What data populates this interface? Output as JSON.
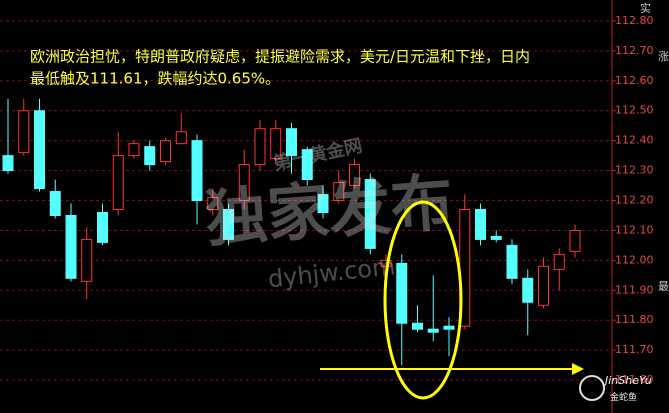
{
  "chart_data": {
    "type": "candlestick",
    "annotation": [
      "欧洲政治担忧，特朗普政府疑虑，提振避险需求，美元/日元温和下挫，日内",
      "最低触及111.61，跌幅约达0.65%。"
    ],
    "watermark": [
      "独家发布",
      "dyhjw.com",
      "第一黄金网"
    ],
    "logo": [
      "JinSheYu",
      "金蛇鱼"
    ],
    "side_labels": [
      "实",
      "涨",
      "最"
    ],
    "open": [
      112.35,
      112.36,
      112.5,
      112.23,
      112.15,
      111.93,
      112.16,
      112.17,
      112.35,
      112.38,
      112.33,
      112.39,
      112.4,
      112.17,
      112.17,
      112.2,
      112.32,
      112.34,
      112.44,
      112.37,
      112.22,
      112.2,
      112.25,
      112.27,
      111.98,
      111.99,
      111.79,
      111.77,
      111.78,
      111.78,
      112.17,
      112.08,
      112.05,
      111.94,
      111.85,
      111.97,
      112.03
    ],
    "high": [
      112.54,
      112.54,
      112.54,
      112.27,
      112.19,
      112.11,
      112.19,
      112.43,
      112.4,
      112.4,
      112.41,
      112.49,
      112.42,
      112.24,
      112.19,
      112.37,
      112.47,
      112.47,
      112.46,
      112.38,
      112.25,
      112.3,
      112.34,
      112.29,
      112.02,
      112.02,
      111.85,
      111.95,
      111.81,
      112.22,
      112.19,
      112.1,
      112.07,
      111.97,
      112.01,
      112.04,
      112.12
    ],
    "low": [
      112.29,
      112.35,
      112.23,
      112.14,
      111.93,
      111.87,
      112.05,
      112.15,
      112.34,
      112.3,
      112.32,
      112.39,
      112.12,
      112.15,
      112.05,
      112.17,
      112.3,
      112.32,
      112.29,
      112.25,
      112.14,
      112.19,
      112.24,
      112.02,
      111.87,
      111.65,
      111.76,
      111.73,
      111.68,
      111.77,
      112.05,
      112.06,
      111.92,
      111.75,
      111.84,
      111.9,
      112.01
    ],
    "close": [
      112.3,
      112.5,
      112.24,
      112.15,
      111.94,
      112.07,
      112.06,
      112.35,
      112.39,
      112.32,
      112.4,
      112.43,
      112.2,
      112.21,
      112.07,
      112.32,
      112.44,
      112.44,
      112.35,
      112.27,
      112.16,
      112.26,
      112.32,
      112.04,
      112.0,
      111.79,
      111.77,
      111.76,
      111.77,
      112.17,
      112.07,
      112.07,
      111.94,
      111.86,
      111.98,
      112.02,
      112.1
    ],
    "up_color": "#ff3232",
    "down_color": "#54ffff",
    "ylim": [
      111.49,
      112.87
    ],
    "yticks": [
      {
        "value": 112.8,
        "label": "112.80"
      },
      {
        "value": 112.7,
        "label": "112.70"
      },
      {
        "value": 112.6,
        "label": "112.60"
      },
      {
        "value": 112.5,
        "label": "112.50"
      },
      {
        "value": 112.4,
        "label": "112.40"
      },
      {
        "value": 112.3,
        "label": "112.30"
      },
      {
        "value": 112.2,
        "label": "112.20"
      },
      {
        "value": 112.1,
        "label": "112.10"
      },
      {
        "value": 112,
        "label": "112.00"
      },
      {
        "value": 111.9,
        "label": "111.90"
      },
      {
        "value": 111.8,
        "label": "111.80"
      },
      {
        "value": 111.7,
        "label": "111.70"
      },
      {
        "value": 111.6,
        "label": "111.60"
      }
    ],
    "grid": true
  }
}
